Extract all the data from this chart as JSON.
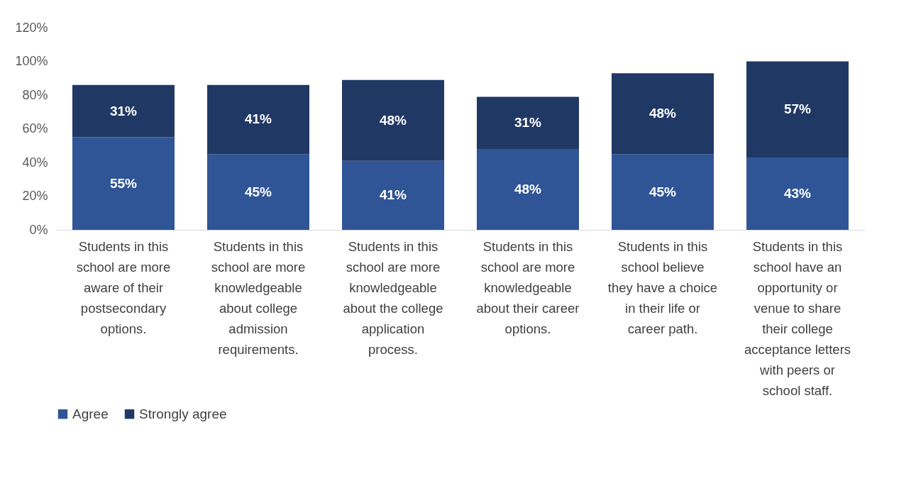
{
  "chart_data": {
    "type": "bar",
    "stacked": true,
    "categories": [
      "Students in this school are more aware of their postsecondary options.",
      "Students in this school are more knowledgeable about college admission requirements.",
      "Students in this school are more knowledgeable about the college application process.",
      "Students in this school are more knowledgeable about their career options.",
      "Students in this school believe they have a choice in their life or career path.",
      "Students in this school have an opportunity or venue to share their college acceptance letters with peers or school staff."
    ],
    "series": [
      {
        "name": "Agree",
        "color": "#2f5597",
        "values": [
          55,
          45,
          41,
          48,
          45,
          43
        ],
        "value_labels": [
          "55%",
          "45%",
          "41%",
          "48%",
          "45%",
          "43%"
        ]
      },
      {
        "name": "Strongly agree",
        "color": "#203864",
        "values": [
          31,
          41,
          48,
          31,
          48,
          57
        ],
        "value_labels": [
          "31%",
          "41%",
          "48%",
          "31%",
          "48%",
          "57%"
        ]
      }
    ],
    "ylim": [
      0,
      120
    ],
    "yticks": [
      {
        "value": 0,
        "label": "0%"
      },
      {
        "value": 20,
        "label": "20%"
      },
      {
        "value": 40,
        "label": "40%"
      },
      {
        "value": 60,
        "label": "60%"
      },
      {
        "value": 80,
        "label": "80%"
      },
      {
        "value": 100,
        "label": "100%"
      },
      {
        "value": 120,
        "label": "120%"
      }
    ],
    "grid": false,
    "legend": "bottom"
  }
}
